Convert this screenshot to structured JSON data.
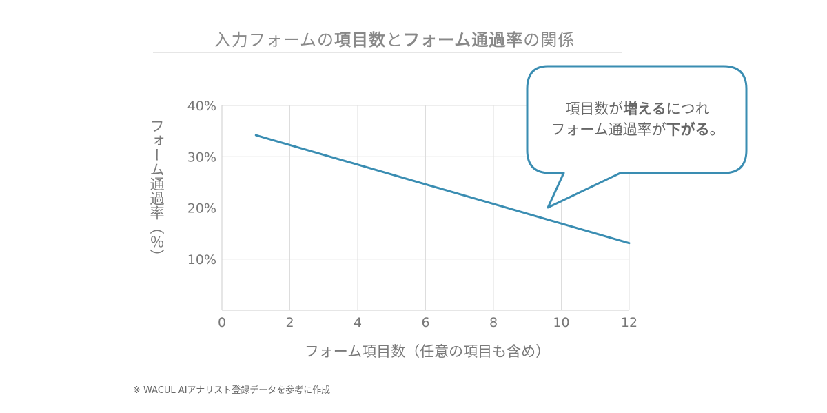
{
  "title": {
    "part1": "入力フォームの",
    "part2": "項目数",
    "part3": "と",
    "part4": "フォーム通過率",
    "part5": "の関係"
  },
  "chart_data": {
    "type": "line",
    "title": "入力フォームの項目数とフォーム通過率の関係",
    "xlabel": "フォーム項目数（任意の項目も含め）",
    "ylabel": "フォーム通過率（％）",
    "xlim": [
      0,
      12
    ],
    "ylim": [
      0,
      40
    ],
    "x_ticks": [
      0,
      2,
      4,
      6,
      8,
      10,
      12
    ],
    "x_tick_labels": [
      "0",
      "2",
      "4",
      "6",
      "8",
      "10",
      "12"
    ],
    "y_ticks": [
      10,
      20,
      30,
      40
    ],
    "y_tick_labels": [
      "10%",
      "20%",
      "30%",
      "40%"
    ],
    "grid": true,
    "series": [
      {
        "x": [
          1,
          12
        ],
        "y": [
          34.2,
          13.1
        ]
      }
    ],
    "colors": {
      "line": "#3a8db2",
      "grid": "#dddddd",
      "callout_border": "#3a8db2"
    },
    "annotation": {
      "line1_a": "項目数が",
      "line1_b": "増える",
      "line1_c": "につれ",
      "line2_a": "フォーム通過率が",
      "line2_b": "下がる",
      "line2_c": "。"
    }
  },
  "footnote": "※ WACUL AIアナリスト登録データを参考に作成"
}
